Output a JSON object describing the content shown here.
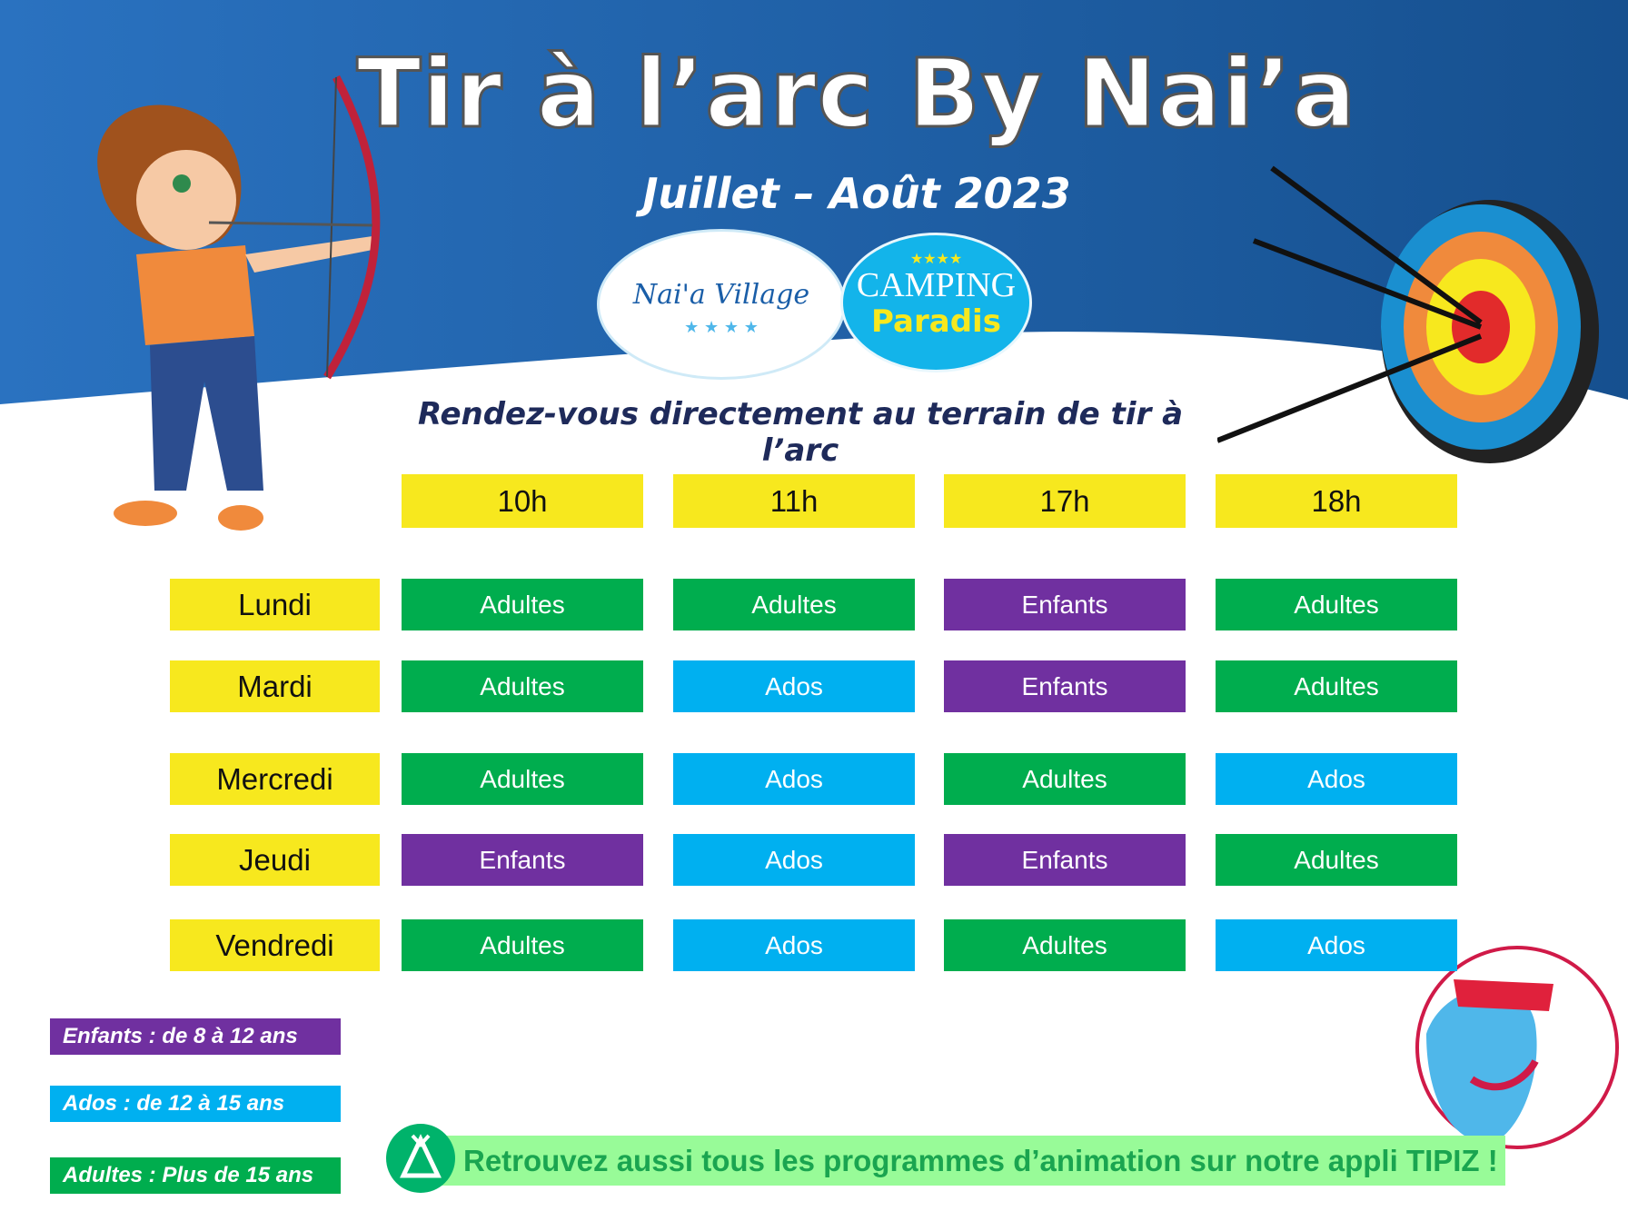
{
  "title": "Tir à l’arc By Nai’a",
  "subtitle": "Juillet – Août 2023",
  "logos": {
    "naia": "Nai'a Village",
    "camping_line1": "CAMPING",
    "camping_line2": "Paradis"
  },
  "instruction": "Rendez-vous directement au terrain de tir à l’arc",
  "colors": {
    "adultes": "#00ad4e",
    "ados": "#00b0f0",
    "enfants": "#7030a0",
    "header": "#f7e81e",
    "background": "#1e5aa0"
  },
  "schedule": {
    "times": [
      "10h",
      "11h",
      "17h",
      "18h"
    ],
    "rows": [
      {
        "day": "Lundi",
        "slots": [
          "Adultes",
          "Adultes",
          "Enfants",
          "Adultes"
        ]
      },
      {
        "day": "Mardi",
        "slots": [
          "Adultes",
          "Ados",
          "Enfants",
          "Adultes"
        ]
      },
      {
        "day": "Mercredi",
        "slots": [
          "Adultes",
          "Ados",
          "Adultes",
          "Ados"
        ]
      },
      {
        "day": "Jeudi",
        "slots": [
          "Enfants",
          "Ados",
          "Enfants",
          "Adultes"
        ]
      },
      {
        "day": "Vendredi",
        "slots": [
          "Adultes",
          "Ados",
          "Adultes",
          "Ados"
        ]
      }
    ]
  },
  "legend": [
    {
      "label": "Enfants : de 8 à 12 ans",
      "color": "#7030a0"
    },
    {
      "label": "Ados : de 12 à 15 ans",
      "color": "#00b0f0"
    },
    {
      "label": "Adultes : Plus de 15 ans",
      "color": "#00ad4e"
    }
  ],
  "banner": "Retrouvez aussi tous les programmes d’animation sur notre appli TIPIZ !"
}
